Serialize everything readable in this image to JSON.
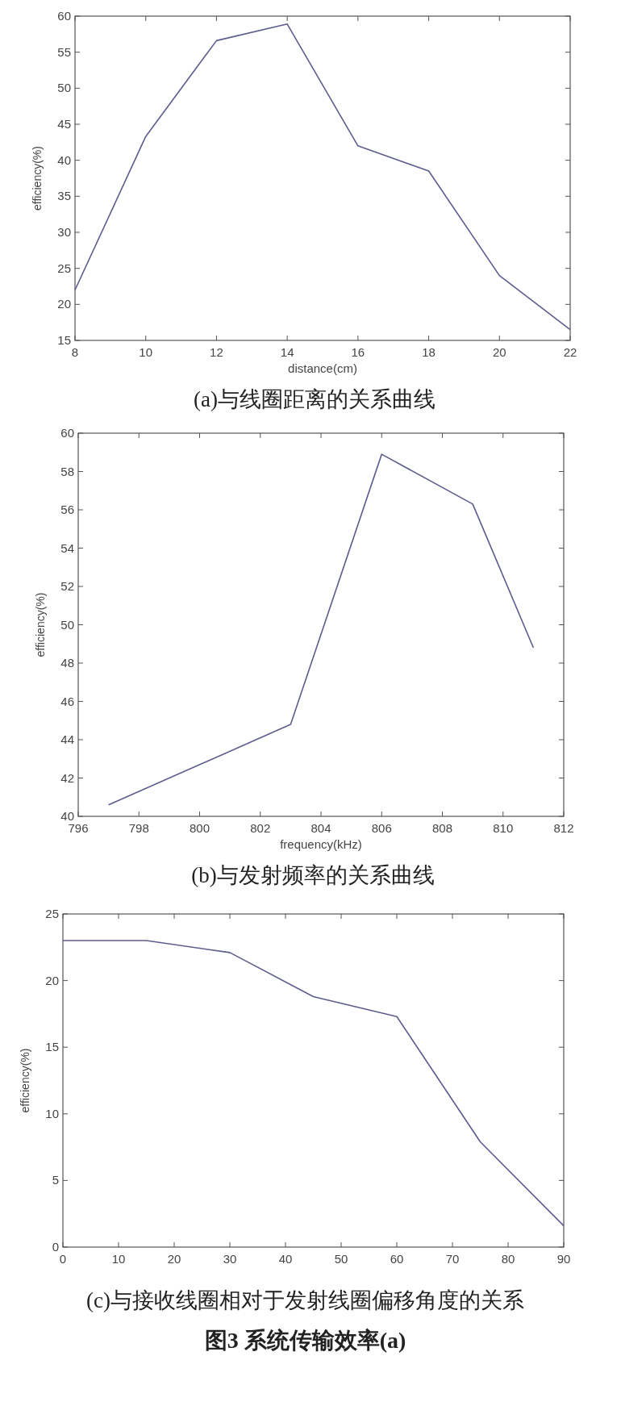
{
  "chart_data": [
    {
      "type": "line",
      "xlabel": "distance(cm)",
      "ylabel": "efficiency(%)",
      "x": [
        8,
        10,
        12,
        14,
        16,
        18,
        20,
        22
      ],
      "series": [
        {
          "color": "#5c5c8e",
          "values": [
            22,
            43.3,
            56.6,
            58.9,
            42,
            38.5,
            24,
            16.5
          ]
        }
      ],
      "xlim": [
        8,
        22
      ],
      "xticks": [
        8,
        10,
        12,
        14,
        16,
        18,
        20,
        22
      ],
      "ylim": [
        15,
        60
      ],
      "yticks": [
        15,
        20,
        25,
        30,
        35,
        40,
        45,
        50,
        55,
        60
      ],
      "annotations": [
        "(a)与线圈距离的关系曲线"
      ]
    },
    {
      "type": "line",
      "xlabel": "frequency(kHz)",
      "ylabel": "efficiency(%)",
      "x": [
        797,
        803,
        806,
        809,
        811
      ],
      "series": [
        {
          "color": "#5c5c8e",
          "values": [
            40.6,
            44.8,
            58.9,
            56.3,
            48.8
          ]
        }
      ],
      "xlim": [
        796,
        812
      ],
      "xticks": [
        796,
        798,
        800,
        802,
        804,
        806,
        808,
        810,
        812
      ],
      "ylim": [
        40,
        60
      ],
      "yticks": [
        40,
        42,
        44,
        46,
        48,
        50,
        52,
        54,
        56,
        58,
        60
      ],
      "annotations": [
        "(b)与发射频率的关系曲线"
      ]
    },
    {
      "type": "line",
      "ylabel": "efficiency(%)",
      "x": [
        0,
        15,
        30,
        45,
        60,
        75,
        90
      ],
      "series": [
        {
          "color": "#5c5c8e",
          "values": [
            23,
            23,
            22.1,
            18.8,
            17.3,
            7.9,
            1.6
          ]
        }
      ],
      "xlim": [
        0,
        90
      ],
      "xticks": [
        0,
        10,
        20,
        30,
        40,
        50,
        60,
        70,
        80,
        90
      ],
      "ylim": [
        0,
        25
      ],
      "yticks": [
        0,
        5,
        10,
        15,
        20,
        25
      ],
      "annotations": [
        "(c)与接收线圈相对于发射线圈偏移角度的关系",
        "图3 系统传输效率(a)"
      ]
    }
  ]
}
